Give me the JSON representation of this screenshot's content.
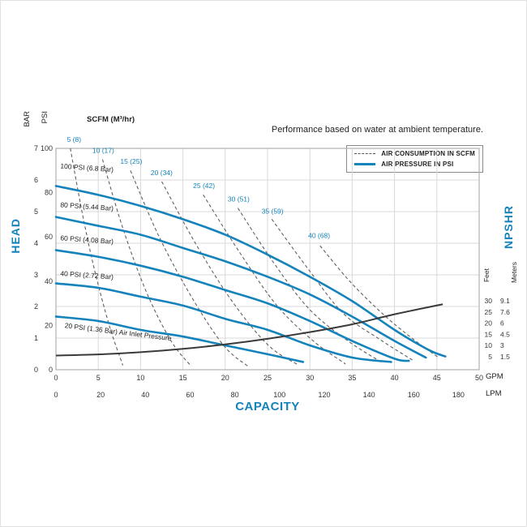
{
  "chart_data": {
    "type": "line",
    "title": "",
    "note": "Performance based on water at ambient temperature.",
    "scfm_header": "SCFM (M³/hr)",
    "legend": {
      "position": "top-right",
      "items": [
        {
          "label": "AIR CONSUMPTION IN SCFM",
          "style": "dashed"
        },
        {
          "label": "AIR PRESSURE IN PSI",
          "style": "solid"
        }
      ]
    },
    "axes": {
      "head_label": "HEAD",
      "capacity_label": "CAPACITY",
      "npshr_label": "NPSHR",
      "bar_label": "BAR",
      "psi_label": "PSI",
      "feet_label": "Feet",
      "meters_label": "Meters",
      "gpm_unit": "GPM",
      "lpm_unit": "LPM",
      "bar_ticks": [
        7,
        6,
        5,
        4,
        3,
        2,
        1,
        0
      ],
      "psi_ticks": [
        100,
        80,
        60,
        40,
        20,
        0
      ],
      "gpm_ticks": [
        0,
        5,
        10,
        15,
        20,
        25,
        30,
        35,
        40,
        45,
        50
      ],
      "lpm_ticks": [
        0,
        20,
        40,
        60,
        80,
        100,
        120,
        140,
        160,
        180
      ],
      "feet_ticks": [
        30,
        25,
        20,
        15,
        10,
        5
      ],
      "meters_ticks": [
        "9.1",
        "7.6",
        "6",
        "4.5",
        "3",
        "1.5"
      ],
      "gpm_range": [
        0,
        50
      ],
      "psi_range": [
        0,
        100
      ],
      "bar_range": [
        0,
        7
      ],
      "feet_range": [
        5,
        30
      ],
      "feet_range_psi_equiv": [
        5.9,
        31.1
      ],
      "lpm_per_gpm": 3.7854,
      "grid": true
    },
    "colors": {
      "accent": "#1583bb",
      "dashed": "#606060",
      "npshr": "#3a3a3a",
      "grid": "#d9d9d9",
      "frame": "#b0b0b0",
      "text": "#333333"
    },
    "pressure_curves": [
      {
        "label": "100 PSI (6.8 Bar)",
        "label_at": [
          0.5,
          91
        ],
        "label_rot": 4,
        "points_gpm_psi": [
          [
            0,
            83
          ],
          [
            5,
            79
          ],
          [
            10,
            74
          ],
          [
            15,
            68
          ],
          [
            20,
            61
          ],
          [
            25,
            52
          ],
          [
            30,
            42
          ],
          [
            35,
            31
          ],
          [
            40,
            18
          ],
          [
            44,
            9
          ],
          [
            46,
            6
          ]
        ]
      },
      {
        "label": "80 PSI (5.44 Bar)",
        "label_at": [
          0.5,
          73.5
        ],
        "label_rot": 4,
        "points_gpm_psi": [
          [
            0,
            69
          ],
          [
            5,
            65
          ],
          [
            10,
            61
          ],
          [
            15,
            55
          ],
          [
            20,
            49
          ],
          [
            25,
            42
          ],
          [
            30,
            34
          ],
          [
            35,
            24
          ],
          [
            40,
            13
          ],
          [
            43.7,
            5.5
          ]
        ]
      },
      {
        "label": "60 PSI (4.08 Bar)",
        "label_at": [
          0.5,
          58.5
        ],
        "label_rot": 4,
        "points_gpm_psi": [
          [
            0,
            54
          ],
          [
            5,
            51
          ],
          [
            10,
            47
          ],
          [
            15,
            42
          ],
          [
            20,
            36
          ],
          [
            25,
            30
          ],
          [
            30,
            22
          ],
          [
            35,
            13
          ],
          [
            40,
            5
          ],
          [
            41.7,
            4
          ]
        ]
      },
      {
        "label": "40 PSI (2.72 Bar)",
        "label_at": [
          0.5,
          42.5
        ],
        "label_rot": 4,
        "points_gpm_psi": [
          [
            0,
            39
          ],
          [
            5,
            37
          ],
          [
            10,
            33
          ],
          [
            15,
            29
          ],
          [
            20,
            23
          ],
          [
            25,
            18
          ],
          [
            30,
            11
          ],
          [
            35,
            5.5
          ],
          [
            39.6,
            3.5
          ]
        ]
      },
      {
        "label": "20 PSI (1.36 Bar) Air Inlet Pressure",
        "label_at": [
          1.0,
          19
        ],
        "label_rot": 7,
        "points_gpm_psi": [
          [
            0,
            24
          ],
          [
            5,
            22
          ],
          [
            10,
            18
          ],
          [
            15,
            15
          ],
          [
            20,
            11
          ],
          [
            25,
            7
          ],
          [
            29.2,
            3.5
          ]
        ]
      }
    ],
    "consumption_curves": [
      {
        "label": "5 (8)",
        "label_at": [
          1.3,
          103
        ],
        "points_gpm_psi": [
          [
            1.7,
            100
          ],
          [
            3.1,
            71
          ],
          [
            4.5,
            46
          ],
          [
            6.3,
            20
          ],
          [
            7.9,
            2
          ]
        ]
      },
      {
        "label": "10 (17)",
        "label_at": [
          4.3,
          98
        ],
        "points_gpm_psi": [
          [
            5.5,
            95
          ],
          [
            7.9,
            64
          ],
          [
            10.7,
            35
          ],
          [
            13.6,
            13
          ],
          [
            16,
            1.5
          ]
        ]
      },
      {
        "label": "15 (25)",
        "label_at": [
          7.6,
          93
        ],
        "points_gpm_psi": [
          [
            8.8,
            90
          ],
          [
            12.2,
            60
          ],
          [
            16,
            33
          ],
          [
            19.8,
            11
          ],
          [
            22.7,
            1.5
          ]
        ]
      },
      {
        "label": "20 (34)",
        "label_at": [
          11.2,
          88
        ],
        "points_gpm_psi": [
          [
            12.5,
            85
          ],
          [
            16.5,
            57
          ],
          [
            20.8,
            31
          ],
          [
            25.1,
            11
          ],
          [
            28.7,
            2
          ]
        ]
      },
      {
        "label": "25 (42)",
        "label_at": [
          16.2,
          82
        ],
        "points_gpm_psi": [
          [
            17.4,
            79
          ],
          [
            21.7,
            53
          ],
          [
            26.1,
            29
          ],
          [
            30.4,
            13
          ],
          [
            34.2,
            2.6
          ]
        ]
      },
      {
        "label": "30 (51)",
        "label_at": [
          20.3,
          76
        ],
        "points_gpm_psi": [
          [
            21.5,
            73
          ],
          [
            25.6,
            49
          ],
          [
            29.9,
            27.5
          ],
          [
            34.5,
            13
          ],
          [
            38.5,
            3.3
          ]
        ]
      },
      {
        "label": "35 (59)",
        "label_at": [
          24.3,
          70.5
        ],
        "points_gpm_psi": [
          [
            25.5,
            68
          ],
          [
            29.7,
            46
          ],
          [
            33.9,
            25.6
          ],
          [
            38.3,
            13.6
          ],
          [
            42.1,
            4.4
          ]
        ]
      },
      {
        "label": "40 (68)",
        "label_at": [
          29.8,
          59.5
        ],
        "points_gpm_psi": [
          [
            31.2,
            56
          ],
          [
            34.7,
            40
          ],
          [
            38.5,
            25.6
          ],
          [
            41.9,
            14.7
          ],
          [
            45.2,
            5.5
          ]
        ]
      }
    ],
    "npshr_curve": {
      "points_gpm_feet": [
        [
          0,
          5.5
        ],
        [
          5,
          6
        ],
        [
          10,
          7
        ],
        [
          15,
          8.5
        ],
        [
          20,
          10.5
        ],
        [
          25,
          13
        ],
        [
          30,
          16
        ],
        [
          35,
          19.5
        ],
        [
          40,
          24
        ],
        [
          45.7,
          28.5
        ]
      ]
    }
  }
}
